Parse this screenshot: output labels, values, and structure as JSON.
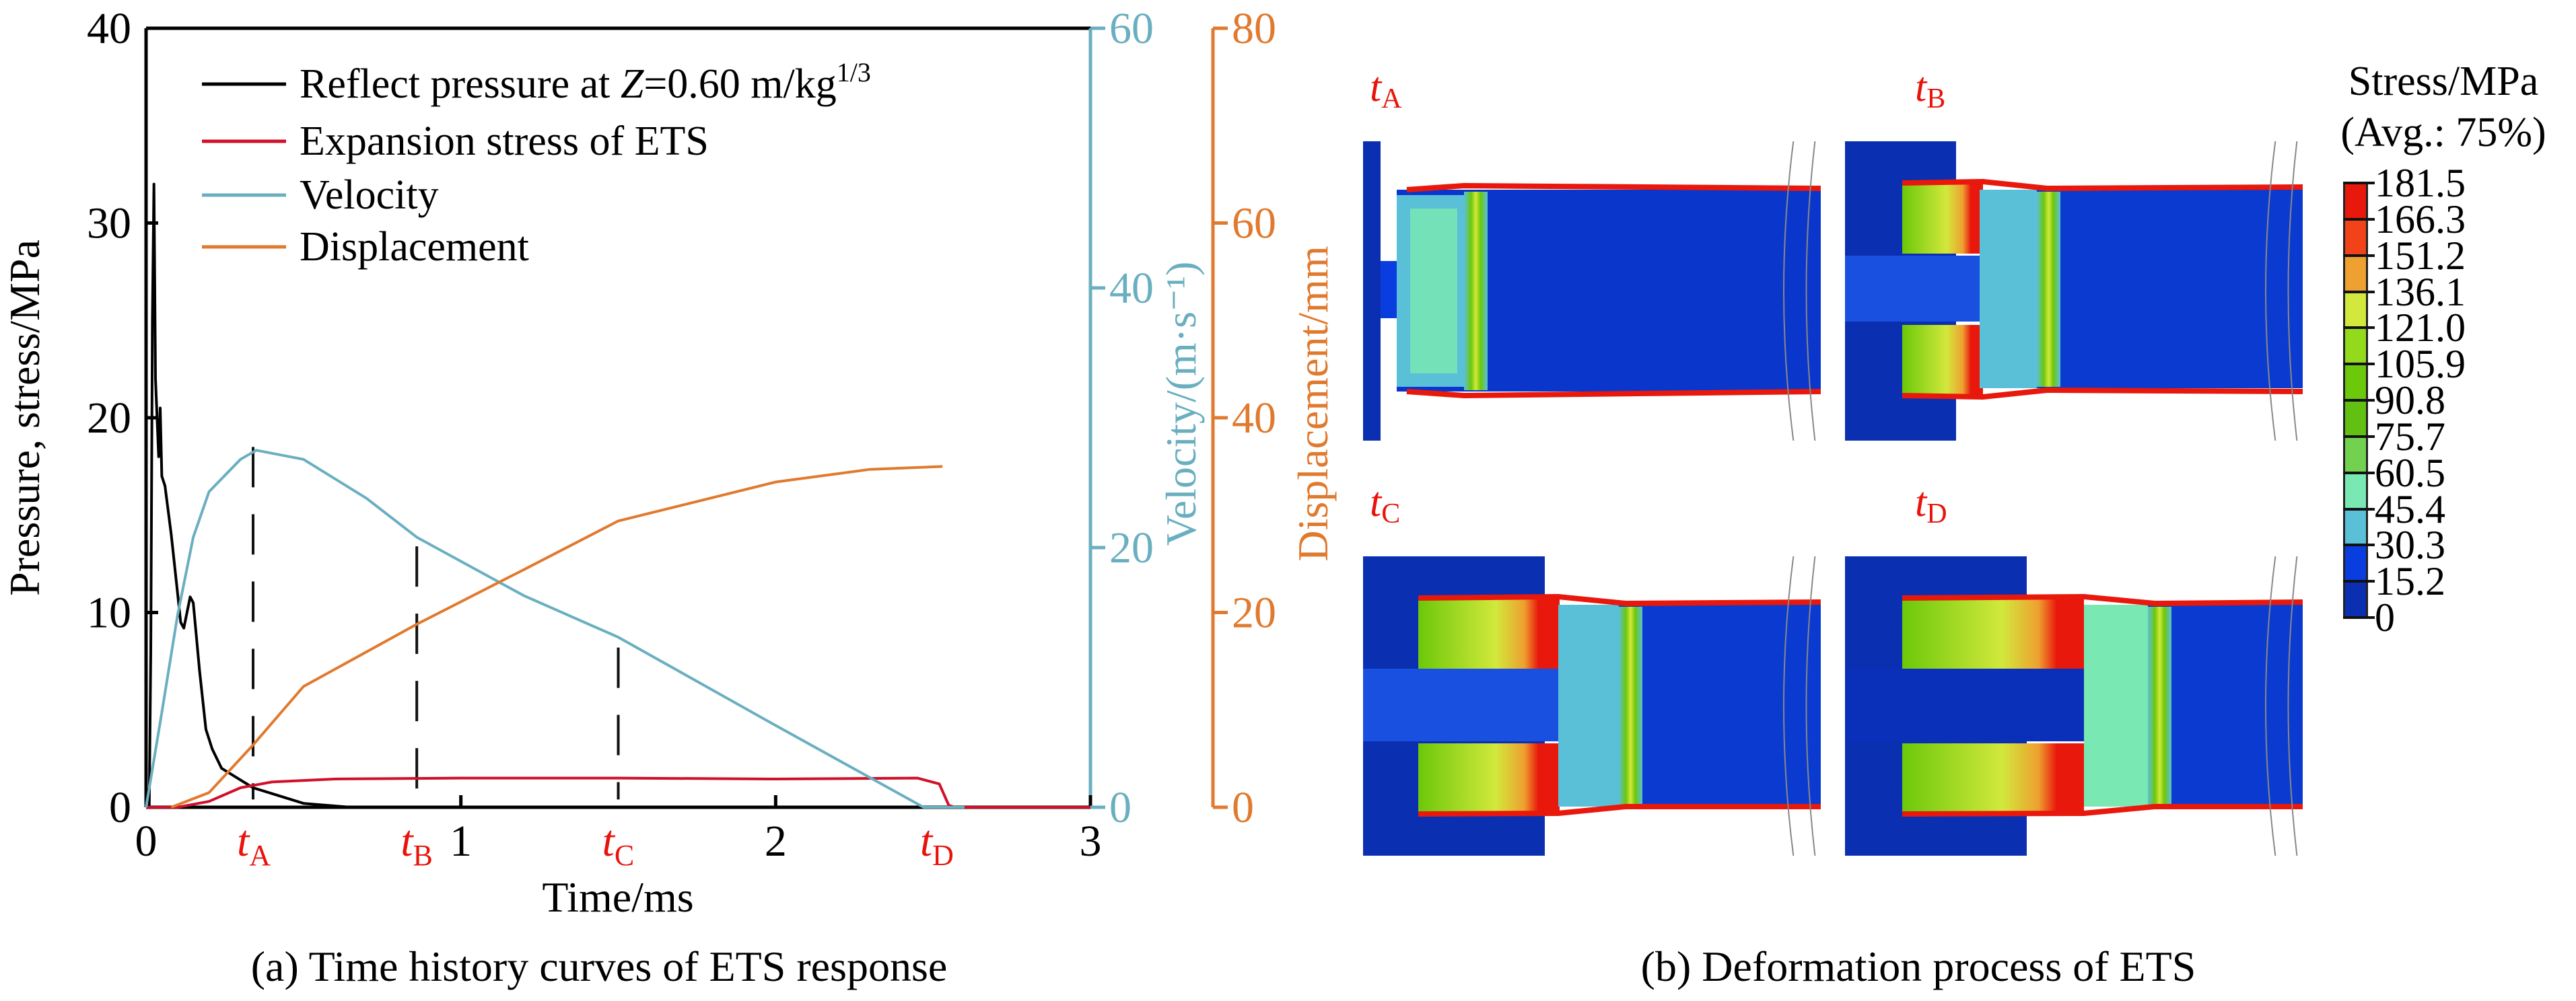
{
  "figure_a": {
    "caption": "(a) Time history curves of ETS response"
  },
  "figure_b": {
    "caption": "(b) Deformation process of ETS",
    "panels": [
      {
        "t": "t",
        "sub": "A"
      },
      {
        "t": "t",
        "sub": "B"
      },
      {
        "t": "t",
        "sub": "C"
      },
      {
        "t": "t",
        "sub": "D"
      }
    ],
    "colorbar": {
      "title": "Stress/MPa",
      "subtitle": "(Avg.: 75%)",
      "labels": [
        "181.5",
        "166.3",
        "151.2",
        "136.1",
        "121.0",
        "105.9",
        "90.8",
        "75.7",
        "60.5",
        "45.4",
        "30.3",
        "15.2",
        "0"
      ],
      "colors": [
        "#e8180c",
        "#f2421a",
        "#eea030",
        "#d2e83c",
        "#94da1c",
        "#6cc80a",
        "#62c012",
        "#72d250",
        "#7ae8b2",
        "#5ac0d8",
        "#0a3de0",
        "#0a2fb0"
      ]
    }
  },
  "chart_data": {
    "type": "line",
    "xlabel": "Time/ms",
    "xlim": [
      0,
      3
    ],
    "xticks": [
      "0",
      "1",
      "2",
      "3"
    ],
    "y_axes": [
      {
        "id": "left",
        "label": "Pressure, stress/MPa",
        "lim": [
          0,
          40
        ],
        "ticks": [
          "0",
          "10",
          "20",
          "30",
          "40"
        ],
        "color": "#000000"
      },
      {
        "id": "velocity",
        "label": "Velocity/(m·s⁻¹)",
        "lim": [
          0,
          60
        ],
        "ticks": [
          "0",
          "20",
          "40",
          "60"
        ],
        "color": "#6aafc0"
      },
      {
        "id": "displacement",
        "label": "Displacement/mm",
        "lim": [
          0,
          80
        ],
        "ticks": [
          "0",
          "20",
          "40",
          "60",
          "80"
        ],
        "color": "#e07a2e"
      }
    ],
    "legend": "top-left",
    "series": [
      {
        "name": "Reflect pressure at Z=0.60 m/kg1/3",
        "name_parts": [
          "Reflect pressure at ",
          "Z",
          "=0.60 m/kg",
          "1/3"
        ],
        "axis": "left",
        "color": "#000000",
        "x": [
          0,
          0.01,
          0.015,
          0.02,
          0.025,
          0.03,
          0.04,
          0.045,
          0.05,
          0.06,
          0.08,
          0.1,
          0.11,
          0.12,
          0.14,
          0.15,
          0.17,
          0.19,
          0.21,
          0.24,
          0.28,
          0.34,
          0.4,
          0.5,
          0.65,
          3
        ],
        "y": [
          0,
          0,
          8,
          25,
          32,
          22,
          18,
          20.5,
          17,
          16.5,
          14,
          11,
          9.5,
          9.2,
          10.8,
          10.5,
          7,
          4,
          3,
          2,
          1.6,
          1,
          0.7,
          0.2,
          0,
          0
        ]
      },
      {
        "name": "Expansion stress of ETS",
        "axis": "left",
        "color": "#d0102a",
        "x": [
          0,
          0.1,
          0.2,
          0.3,
          0.4,
          0.6,
          1.0,
          1.5,
          2.0,
          2.45,
          2.52,
          2.55,
          2.57,
          3
        ],
        "y": [
          0,
          0,
          0.3,
          1.0,
          1.3,
          1.45,
          1.5,
          1.5,
          1.45,
          1.5,
          1.2,
          0.1,
          0,
          0
        ]
      },
      {
        "name": "Velocity",
        "axis": "velocity",
        "color": "#6aafc0",
        "x": [
          0,
          0.05,
          0.1,
          0.15,
          0.2,
          0.3,
          0.35,
          0.5,
          0.7,
          0.86,
          1.2,
          1.5,
          2.0,
          2.47,
          2.6
        ],
        "y": [
          0,
          7.3,
          14.8,
          20.8,
          24.3,
          26.8,
          27.5,
          26.8,
          23.8,
          20.8,
          16.3,
          13.1,
          6.3,
          0,
          0
        ]
      },
      {
        "name": "Displacement",
        "axis": "displacement",
        "color": "#e07a2e",
        "x": [
          0.08,
          0.2,
          0.34,
          0.5,
          0.86,
          1.2,
          1.5,
          2.0,
          2.3,
          2.53
        ],
        "y": [
          0,
          1.5,
          6.4,
          12.4,
          18.8,
          24.4,
          29.4,
          33.4,
          34.7,
          35.0
        ]
      }
    ],
    "markers": [
      {
        "t": "t",
        "sub": "A",
        "x": 0.34,
        "dash_to": 18.5
      },
      {
        "t": "t",
        "sub": "B",
        "x": 0.86,
        "dash_to": 13.4
      },
      {
        "t": "t",
        "sub": "C",
        "x": 1.5,
        "dash_to": 8.2
      },
      {
        "t": "t",
        "sub": "D",
        "x": 2.51,
        "marker_color": "#e8140c"
      }
    ]
  }
}
